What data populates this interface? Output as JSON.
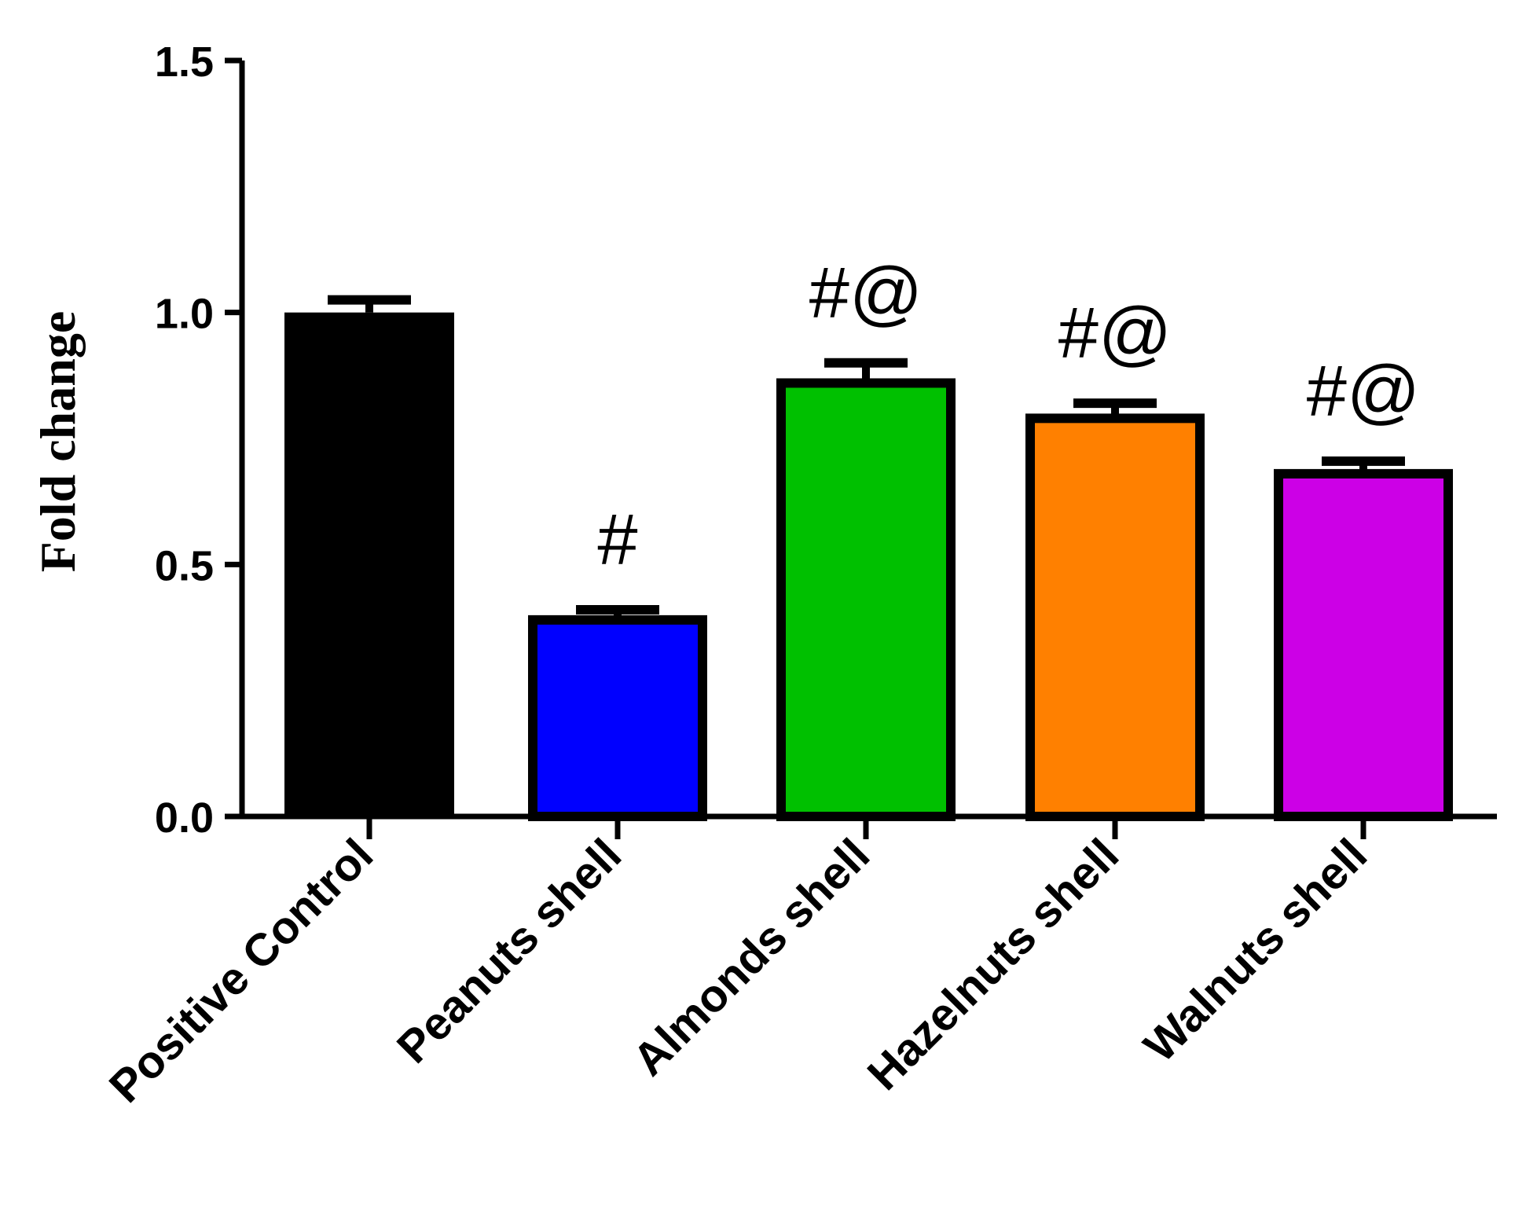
{
  "chart_data": {
    "type": "bar",
    "title": "",
    "xlabel": "",
    "ylabel": "Fold change",
    "ylim": [
      0,
      1.5
    ],
    "yticks": [
      "0.0",
      "0.5",
      "1.0",
      "1.5"
    ],
    "categories": [
      "Positive Control",
      "Peanuts shell",
      "Almonds shell",
      "Hazelnuts shell",
      "Walnuts shell"
    ],
    "values": [
      1.0,
      0.39,
      0.86,
      0.79,
      0.68
    ],
    "errors": [
      0.025,
      0.02,
      0.04,
      0.03,
      0.025
    ],
    "annotations": [
      "",
      "#",
      "#@",
      "#@",
      "#@"
    ],
    "colors": [
      "#000000",
      "#0000ff",
      "#00c000",
      "#ff8000",
      "#cc00e6"
    ],
    "grid": false,
    "legend": "none"
  }
}
